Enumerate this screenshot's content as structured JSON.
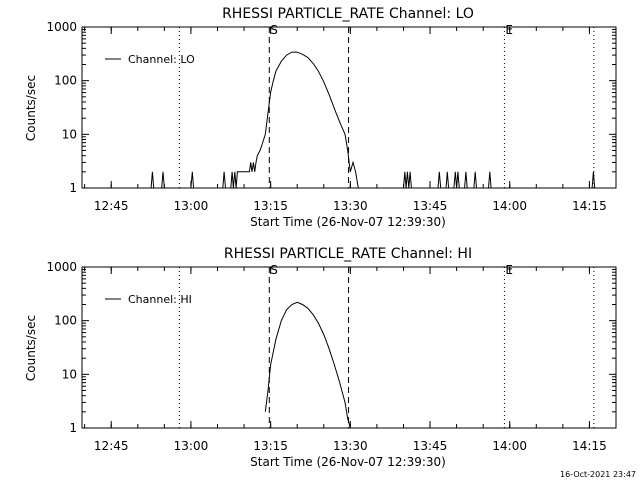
{
  "footer": {
    "timestamp": "16-Oct-2021 23:47"
  },
  "chart_data": [
    {
      "type": "line",
      "title": "RHESSI PARTICLE_RATE Channel: LO",
      "xlabel": "Start Time (26-Nov-07 12:39:30)",
      "ylabel": "Counts/sec",
      "yscale": "log",
      "xlim": [
        "12:39:30",
        "14:20:00"
      ],
      "ylim": [
        1,
        1000
      ],
      "x_ticks": [
        "12:45",
        "13:00",
        "13:15",
        "13:30",
        "13:45",
        "14:00",
        "14:15"
      ],
      "y_ticks": [
        "1",
        "10",
        "100",
        "1000"
      ],
      "markers": [
        {
          "label": "S",
          "time": "13:14:45",
          "style": "dashed"
        },
        {
          "label": "",
          "time": "13:29:40",
          "style": "dashed"
        },
        {
          "label": "",
          "time": "12:57:50",
          "style": "dotted"
        },
        {
          "label": "E",
          "time": "13:59:00",
          "style": "dotted"
        },
        {
          "label": "",
          "time": "14:15:50",
          "style": "dotted"
        }
      ],
      "series": [
        {
          "name": "Channel: LO",
          "x": [
            "12:39:30",
            "12:52:30",
            "12:52:45",
            "12:53:00",
            "12:54:30",
            "12:54:45",
            "12:55:00",
            "13:00:00",
            "13:00:15",
            "13:00:30",
            "13:02:00",
            "13:06:00",
            "13:06:15",
            "13:06:30",
            "13:07:30",
            "13:07:45",
            "13:08:00",
            "13:08:15",
            "13:08:30",
            "13:08:45",
            "13:09:30",
            "13:10:00",
            "13:10:30",
            "13:11:00",
            "13:11:15",
            "13:11:30",
            "13:11:45",
            "13:12:00",
            "13:12:15",
            "13:12:30",
            "13:13:00",
            "13:13:30",
            "13:14:00",
            "13:14:30",
            "13:15:00",
            "13:15:30",
            "13:16:00",
            "13:17:00",
            "13:18:00",
            "13:19:00",
            "13:20:00",
            "13:21:00",
            "13:22:00",
            "13:23:00",
            "13:24:00",
            "13:25:00",
            "13:26:00",
            "13:27:00",
            "13:28:00",
            "13:29:00",
            "13:29:30",
            "13:30:00",
            "13:30:30",
            "13:31:00",
            "13:31:30",
            "13:32:00",
            "13:40:00",
            "13:40:15",
            "13:40:30",
            "13:40:45",
            "13:41:00",
            "13:41:15",
            "13:41:30",
            "13:46:30",
            "13:46:45",
            "13:47:00",
            "13:48:00",
            "13:48:15",
            "13:48:30",
            "13:49:30",
            "13:49:45",
            "13:50:00",
            "13:50:15",
            "13:50:30",
            "13:51:30",
            "13:51:45",
            "13:52:00",
            "13:53:15",
            "13:53:30",
            "13:53:45",
            "13:56:00",
            "13:56:15",
            "13:56:30",
            "14:15:30",
            "14:15:45",
            "14:16:00",
            "14:20:00"
          ],
          "y": [
            1,
            1,
            2,
            1,
            1,
            2,
            1,
            1,
            2,
            1,
            1,
            1,
            2,
            1,
            1,
            2,
            1,
            2,
            1,
            2,
            2,
            2,
            2,
            2,
            3,
            2,
            3,
            2,
            3,
            4,
            5,
            7,
            10,
            25,
            60,
            100,
            150,
            230,
            300,
            340,
            340,
            310,
            270,
            210,
            150,
            95,
            55,
            30,
            17,
            10,
            5,
            2,
            3,
            2,
            1,
            1,
            1,
            2,
            1,
            2,
            1,
            2,
            1,
            1,
            2,
            1,
            1,
            2,
            1,
            1,
            2,
            1,
            2,
            1,
            1,
            2,
            1,
            1,
            2,
            1,
            1,
            2,
            1,
            1,
            2,
            1,
            1
          ]
        }
      ]
    },
    {
      "type": "line",
      "title": "RHESSI PARTICLE_RATE Channel: HI",
      "xlabel": "Start Time (26-Nov-07 12:39:30)",
      "ylabel": "Counts/sec",
      "yscale": "log",
      "xlim": [
        "12:39:30",
        "14:20:00"
      ],
      "ylim": [
        1,
        1000
      ],
      "x_ticks": [
        "12:45",
        "13:00",
        "13:15",
        "13:30",
        "13:45",
        "14:00",
        "14:15"
      ],
      "y_ticks": [
        "1",
        "10",
        "100",
        "1000"
      ],
      "markers": [
        {
          "label": "S",
          "time": "13:14:45",
          "style": "dashed"
        },
        {
          "label": "",
          "time": "13:29:40",
          "style": "dashed"
        },
        {
          "label": "",
          "time": "12:57:50",
          "style": "dotted"
        },
        {
          "label": "E",
          "time": "13:59:00",
          "style": "dotted"
        },
        {
          "label": "",
          "time": "14:15:50",
          "style": "dotted"
        }
      ],
      "series": [
        {
          "name": "Channel: HI",
          "x": [
            "13:14:00",
            "13:14:30",
            "13:15:00",
            "13:16:00",
            "13:17:00",
            "13:18:00",
            "13:19:00",
            "13:20:00",
            "13:21:00",
            "13:22:00",
            "13:23:00",
            "13:24:00",
            "13:25:00",
            "13:26:00",
            "13:27:00",
            "13:28:00",
            "13:29:00",
            "13:29:30",
            "13:30:00"
          ],
          "y": [
            2,
            5,
            15,
            45,
            100,
            160,
            200,
            220,
            200,
            170,
            130,
            90,
            55,
            30,
            15,
            7,
            3,
            1.5,
            1
          ]
        }
      ]
    }
  ]
}
